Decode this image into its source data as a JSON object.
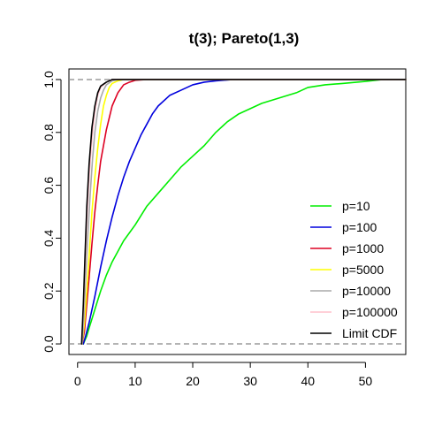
{
  "chart_data": {
    "type": "line",
    "title": "t(3); Pareto(1,3)",
    "xlabel": "",
    "ylabel": "",
    "xlim": [
      -1.5,
      57
    ],
    "ylim": [
      -0.04,
      1.04
    ],
    "x_ticks": [
      0,
      10,
      20,
      30,
      40,
      50
    ],
    "y_ticks": [
      0.0,
      0.2,
      0.4,
      0.6,
      0.8,
      1.0
    ],
    "y_tick_labels": [
      "0.0",
      "0.2",
      "0.4",
      "0.6",
      "0.8",
      "1.0"
    ],
    "reference_lines_y": [
      0,
      1
    ],
    "legend_position": "right",
    "series": [
      {
        "name": "p=10",
        "color": "#00ee00",
        "points": [
          [
            1.0,
            0
          ],
          [
            1.6,
            0.03
          ],
          [
            2,
            0.06
          ],
          [
            3,
            0.13
          ],
          [
            4,
            0.2
          ],
          [
            5,
            0.26
          ],
          [
            6,
            0.31
          ],
          [
            7,
            0.35
          ],
          [
            8,
            0.39
          ],
          [
            10,
            0.45
          ],
          [
            12,
            0.52
          ],
          [
            14,
            0.57
          ],
          [
            16,
            0.62
          ],
          [
            18,
            0.67
          ],
          [
            20,
            0.71
          ],
          [
            22,
            0.75
          ],
          [
            24,
            0.8
          ],
          [
            26,
            0.84
          ],
          [
            28,
            0.87
          ],
          [
            30,
            0.89
          ],
          [
            32,
            0.91
          ],
          [
            35,
            0.93
          ],
          [
            38,
            0.95
          ],
          [
            40,
            0.97
          ],
          [
            43,
            0.98
          ],
          [
            46,
            0.985
          ],
          [
            50,
            0.993
          ],
          [
            53,
            1.0
          ],
          [
            57,
            1.0
          ]
        ]
      },
      {
        "name": "p=100",
        "color": "#0000dd",
        "points": [
          [
            1.0,
            0
          ],
          [
            1.4,
            0.03
          ],
          [
            2,
            0.08
          ],
          [
            3,
            0.18
          ],
          [
            4,
            0.29
          ],
          [
            5,
            0.39
          ],
          [
            6,
            0.48
          ],
          [
            7,
            0.56
          ],
          [
            8,
            0.63
          ],
          [
            9,
            0.69
          ],
          [
            10,
            0.74
          ],
          [
            11,
            0.79
          ],
          [
            12,
            0.83
          ],
          [
            13,
            0.87
          ],
          [
            14,
            0.9
          ],
          [
            16,
            0.94
          ],
          [
            18,
            0.96
          ],
          [
            20,
            0.98
          ],
          [
            22,
            0.99
          ],
          [
            24,
            0.995
          ],
          [
            27,
            1.0
          ],
          [
            57,
            1.0
          ]
        ]
      },
      {
        "name": "p=1000",
        "color": "#dd0022",
        "points": [
          [
            0.8,
            0
          ],
          [
            1.2,
            0.05
          ],
          [
            1.6,
            0.15
          ],
          [
            2,
            0.25
          ],
          [
            2.5,
            0.38
          ],
          [
            3,
            0.5
          ],
          [
            3.5,
            0.6
          ],
          [
            4,
            0.69
          ],
          [
            5,
            0.81
          ],
          [
            6,
            0.9
          ],
          [
            7,
            0.95
          ],
          [
            8,
            0.98
          ],
          [
            9,
            0.99
          ],
          [
            10,
            0.997
          ],
          [
            12,
            1.0
          ],
          [
            57,
            1.0
          ]
        ]
      },
      {
        "name": "p=5000",
        "color": "#ffff00",
        "points": [
          [
            0.8,
            0
          ],
          [
            1.2,
            0.08
          ],
          [
            1.6,
            0.2
          ],
          [
            2,
            0.33
          ],
          [
            2.5,
            0.5
          ],
          [
            3,
            0.63
          ],
          [
            3.5,
            0.74
          ],
          [
            4,
            0.83
          ],
          [
            4.5,
            0.9
          ],
          [
            5,
            0.94
          ],
          [
            5.5,
            0.97
          ],
          [
            6,
            0.985
          ],
          [
            7,
            0.995
          ],
          [
            8,
            1.0
          ],
          [
            57,
            1.0
          ]
        ]
      },
      {
        "name": "p=10000",
        "color": "#aaaaaa",
        "points": [
          [
            0.8,
            0
          ],
          [
            1.1,
            0.1
          ],
          [
            1.4,
            0.25
          ],
          [
            1.8,
            0.42
          ],
          [
            2.2,
            0.57
          ],
          [
            2.6,
            0.7
          ],
          [
            3,
            0.8
          ],
          [
            3.5,
            0.88
          ],
          [
            4,
            0.93
          ],
          [
            4.5,
            0.96
          ],
          [
            5,
            0.98
          ],
          [
            6,
            0.995
          ],
          [
            7,
            1.0
          ],
          [
            57,
            1.0
          ]
        ]
      },
      {
        "name": "p=100000",
        "color": "#ffc0cb",
        "points": [
          [
            0.7,
            0
          ],
          [
            1.0,
            0.12
          ],
          [
            1.3,
            0.3
          ],
          [
            1.6,
            0.47
          ],
          [
            2,
            0.63
          ],
          [
            2.5,
            0.78
          ],
          [
            3,
            0.88
          ],
          [
            3.5,
            0.94
          ],
          [
            4,
            0.97
          ],
          [
            5,
            0.99
          ],
          [
            6,
            1.0
          ],
          [
            57,
            1.0
          ]
        ]
      },
      {
        "name": "Limit CDF",
        "color": "#000000",
        "points": [
          [
            0.7,
            0
          ],
          [
            1.0,
            0.15
          ],
          [
            1.3,
            0.34
          ],
          [
            1.6,
            0.52
          ],
          [
            2,
            0.68
          ],
          [
            2.5,
            0.82
          ],
          [
            3,
            0.9
          ],
          [
            3.5,
            0.95
          ],
          [
            4,
            0.975
          ],
          [
            5,
            0.99
          ],
          [
            6,
            1.0
          ],
          [
            57,
            1.0
          ]
        ]
      }
    ]
  }
}
